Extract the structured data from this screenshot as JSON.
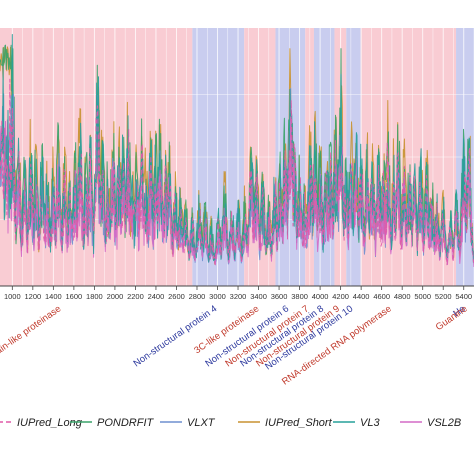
{
  "chart_data": {
    "type": "line",
    "title": "",
    "xlabel": "",
    "ylabel": "",
    "xlim": [
      880,
      5500
    ],
    "ylim": [
      0,
      1
    ],
    "x_ticks": [
      1000,
      1200,
      1400,
      1600,
      1800,
      2000,
      2200,
      2400,
      2600,
      2800,
      3000,
      3200,
      3400,
      3600,
      3800,
      4000,
      4200,
      4400,
      4600,
      4800,
      5000,
      5200,
      5400
    ],
    "grid": true,
    "regions": [
      {
        "label": "",
        "start": 880,
        "end": 2755,
        "color": "#f9ccd3"
      },
      {
        "label": "Papain-like proteinase",
        "anchor": 1480,
        "label_color": "#c0392b"
      },
      {
        "label": "Non-structural protein 4",
        "start": 2755,
        "end": 3260,
        "color": "#c9cdef",
        "anchor": 3000,
        "label_color": "#2e3a9e"
      },
      {
        "label": "3C-like proteinase",
        "start": 3260,
        "end": 3565,
        "color": "#f9ccd3",
        "anchor": 3410,
        "label_color": "#c0392b"
      },
      {
        "label": "Non-structural protein 6",
        "start": 3565,
        "end": 3855,
        "color": "#c9cdef",
        "anchor": 3700,
        "label_color": "#2e3a9e"
      },
      {
        "label": "Non-structural protein 7",
        "start": 3855,
        "end": 3940,
        "color": "#f9ccd3",
        "anchor": 3895,
        "label_color": "#c0392b"
      },
      {
        "label": "Non-structural protein 8",
        "start": 3940,
        "end": 4140,
        "color": "#c9cdef",
        "anchor": 4040,
        "label_color": "#2e3a9e"
      },
      {
        "label": "Non-structural protein 9",
        "start": 4140,
        "end": 4255,
        "color": "#f9ccd3",
        "anchor": 4195,
        "label_color": "#c0392b"
      },
      {
        "label": "Non-structural protein 10",
        "start": 4255,
        "end": 4395,
        "color": "#c9cdef",
        "anchor": 4325,
        "label_color": "#2e3a9e"
      },
      {
        "label": "RNA-directed RNA polymerase",
        "start": 4395,
        "end": 5325,
        "color": "#f9ccd3",
        "anchor": 4700,
        "label_color": "#c0392b"
      },
      {
        "label": "He",
        "start": 5325,
        "end": 5500,
        "color": "#c9cdef",
        "anchor": 5420,
        "label_color": "#2e3a9e"
      },
      {
        "label": "Guanine",
        "anchor": 5440,
        "label_color": "#c0392b"
      }
    ],
    "series": [
      {
        "name": "IUPred_Long",
        "color": "#e05aa8",
        "dash": "5,3"
      },
      {
        "name": "PONDRFIT",
        "color": "#3aa36a",
        "dash": ""
      },
      {
        "name": "VLXT",
        "color": "#6f8fcf",
        "dash": ""
      },
      {
        "name": "IUPred_Short",
        "color": "#c89231",
        "dash": ""
      },
      {
        "name": "VL3",
        "color": "#27a09a",
        "dash": ""
      },
      {
        "name": "VSL2B",
        "color": "#d46ac6",
        "dash": ""
      }
    ],
    "peaks": [
      [
        1000,
        0.95
      ],
      [
        1060,
        0.55
      ],
      [
        1120,
        0.45
      ],
      [
        1180,
        0.55
      ],
      [
        1230,
        0.48
      ],
      [
        1290,
        0.52
      ],
      [
        1340,
        0.42
      ],
      [
        1400,
        0.45
      ],
      [
        1450,
        0.58
      ],
      [
        1510,
        0.47
      ],
      [
        1560,
        0.38
      ],
      [
        1610,
        0.52
      ],
      [
        1660,
        0.62
      ],
      [
        1720,
        0.48
      ],
      [
        1760,
        0.57
      ],
      [
        1830,
        0.84
      ],
      [
        1880,
        0.56
      ],
      [
        1930,
        0.42
      ],
      [
        1980,
        0.58
      ],
      [
        2040,
        0.52
      ],
      [
        2080,
        0.55
      ],
      [
        2130,
        0.63
      ],
      [
        2170,
        0.38
      ],
      [
        2210,
        0.46
      ],
      [
        2260,
        0.58
      ],
      [
        2300,
        0.44
      ],
      [
        2350,
        0.55
      ],
      [
        2400,
        0.52
      ],
      [
        2440,
        0.58
      ],
      [
        2490,
        0.46
      ],
      [
        2530,
        0.48
      ],
      [
        2590,
        0.36
      ],
      [
        2640,
        0.35
      ],
      [
        2690,
        0.3
      ],
      [
        2750,
        0.25
      ],
      [
        2820,
        0.3
      ],
      [
        2880,
        0.28
      ],
      [
        2940,
        0.2
      ],
      [
        3010,
        0.25
      ],
      [
        3070,
        0.37
      ],
      [
        3140,
        0.27
      ],
      [
        3200,
        0.3
      ],
      [
        3270,
        0.32
      ],
      [
        3330,
        0.53
      ],
      [
        3380,
        0.45
      ],
      [
        3440,
        0.38
      ],
      [
        3500,
        0.3
      ],
      [
        3560,
        0.42
      ],
      [
        3610,
        0.46
      ],
      [
        3660,
        0.6
      ],
      [
        3710,
        0.86
      ],
      [
        3750,
        0.55
      ],
      [
        3800,
        0.46
      ],
      [
        3850,
        0.36
      ],
      [
        3900,
        0.55
      ],
      [
        3950,
        0.6
      ],
      [
        4000,
        0.52
      ],
      [
        4060,
        0.45
      ],
      [
        4100,
        0.52
      ],
      [
        4150,
        0.58
      ],
      [
        4200,
        0.84
      ],
      [
        4250,
        0.52
      ],
      [
        4300,
        0.58
      ],
      [
        4350,
        0.6
      ],
      [
        4400,
        0.52
      ],
      [
        4460,
        0.5
      ],
      [
        4510,
        0.5
      ],
      [
        4570,
        0.52
      ],
      [
        4620,
        0.45
      ],
      [
        4660,
        0.6
      ],
      [
        4720,
        0.48
      ],
      [
        4760,
        0.6
      ],
      [
        4820,
        0.5
      ],
      [
        4870,
        0.48
      ],
      [
        4920,
        0.44
      ],
      [
        4980,
        0.5
      ],
      [
        5040,
        0.44
      ],
      [
        5090,
        0.36
      ],
      [
        5140,
        0.3
      ],
      [
        5200,
        0.3
      ],
      [
        5270,
        0.25
      ],
      [
        5330,
        0.32
      ],
      [
        5400,
        0.55
      ],
      [
        5450,
        0.6
      ]
    ],
    "legend_position": "bottom"
  }
}
